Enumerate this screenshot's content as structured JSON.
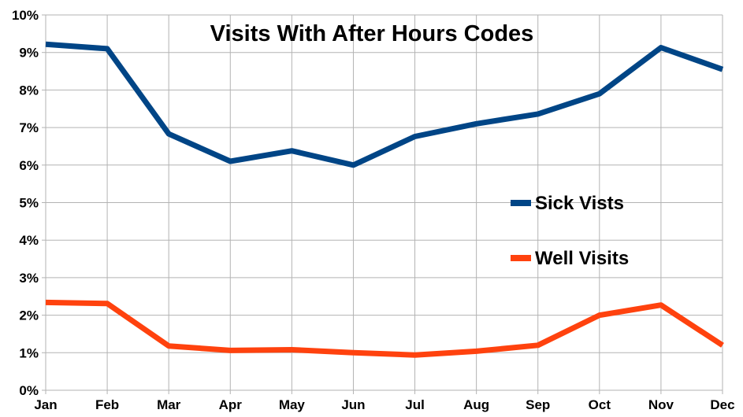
{
  "chart_data": {
    "type": "line",
    "title": "Visits With After Hours Codes",
    "xlabel": "",
    "ylabel": "",
    "categories": [
      "Jan",
      "Feb",
      "Mar",
      "Apr",
      "May",
      "Jun",
      "Jul",
      "Aug",
      "Sep",
      "Oct",
      "Nov",
      "Dec"
    ],
    "y_ticks": [
      0,
      1,
      2,
      3,
      4,
      5,
      6,
      7,
      8,
      9,
      10
    ],
    "y_tick_labels": [
      "0%",
      "1%",
      "2%",
      "3%",
      "4%",
      "5%",
      "6%",
      "7%",
      "8%",
      "9%",
      "10%"
    ],
    "ylim": [
      0,
      10
    ],
    "y_unit": "%",
    "grid": true,
    "legend_position": "right-middle",
    "series": [
      {
        "name": "Sick Vists",
        "color": "#004586",
        "values": [
          9.22,
          9.1,
          6.83,
          6.1,
          6.38,
          6.0,
          6.76,
          7.1,
          7.36,
          7.9,
          9.13,
          8.55
        ]
      },
      {
        "name": "Well Visits",
        "color": "#ff420e",
        "values": [
          2.34,
          2.31,
          1.18,
          1.06,
          1.08,
          1.0,
          0.94,
          1.04,
          1.2,
          2.0,
          2.27,
          1.2
        ]
      }
    ]
  }
}
